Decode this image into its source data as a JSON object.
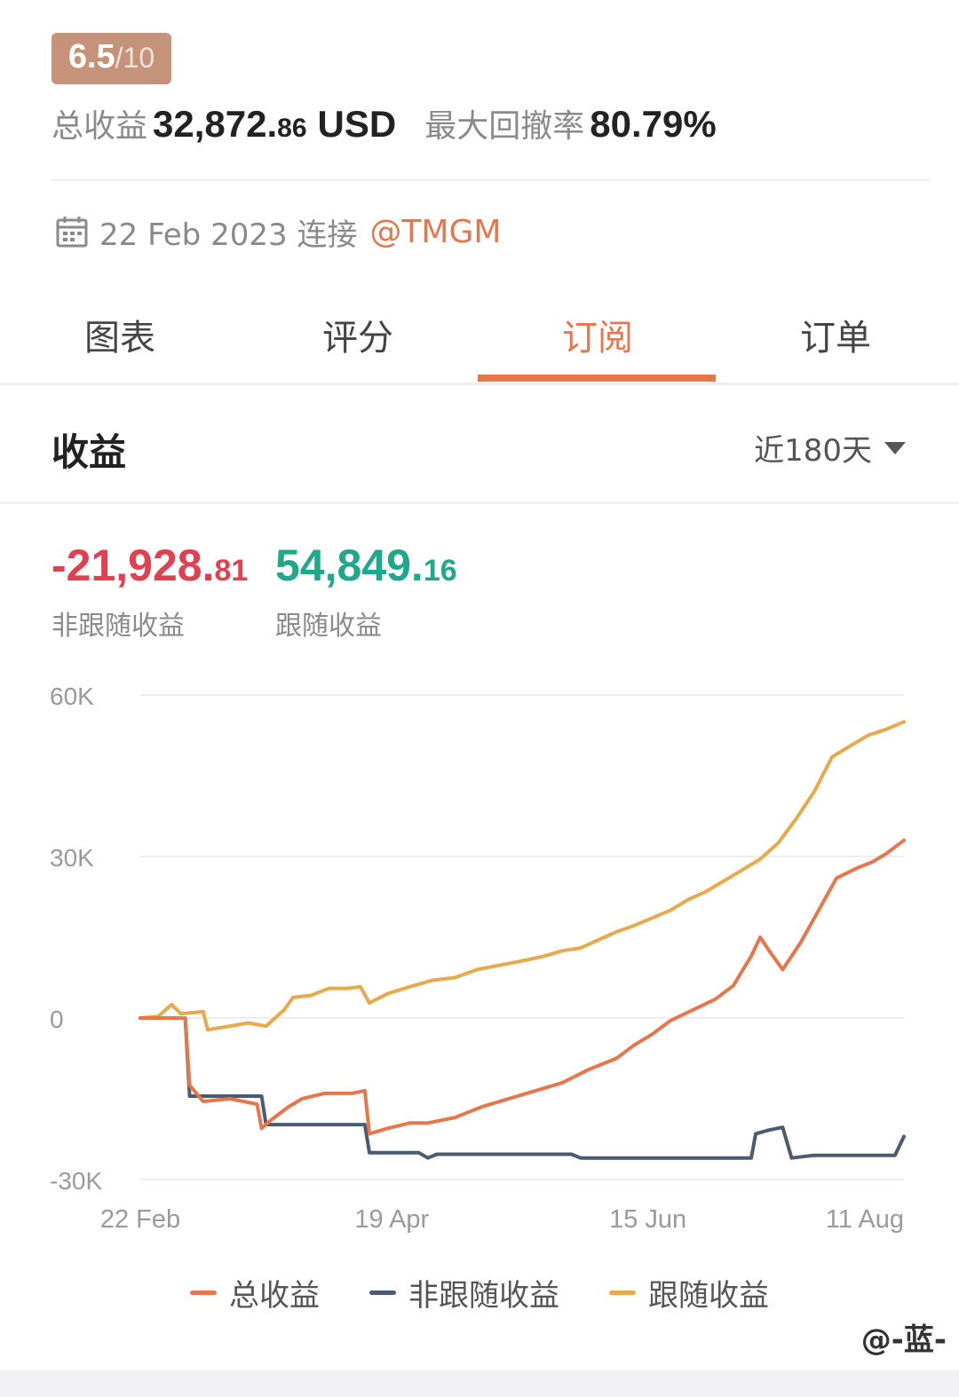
{
  "score": {
    "value": "6.5",
    "total": "/10"
  },
  "stats": {
    "total_profit_label": "总收益",
    "total_profit_int": "32,872.",
    "total_profit_dec": "86",
    "total_profit_unit": "USD",
    "max_drawdown_label": "最大回撤率",
    "max_drawdown_value": "80.79%"
  },
  "connection": {
    "date": "22 Feb 2023 连接",
    "broker": "@TMGM"
  },
  "tabs": [
    {
      "label": "图表",
      "active": false
    },
    {
      "label": "评分",
      "active": false
    },
    {
      "label": "订阅",
      "active": true
    },
    {
      "label": "订单",
      "active": false
    }
  ],
  "section": {
    "title": "收益",
    "range": "近180天"
  },
  "metrics": {
    "non_copy": {
      "int": "-21,928.",
      "dec": "81",
      "label": "非跟随收益",
      "color": "#e0404f"
    },
    "copy": {
      "int": "54,849.",
      "dec": "16",
      "label": "跟随收益",
      "color": "#1fa98a"
    }
  },
  "chart_data": {
    "type": "line",
    "y_ticks": [
      "60K",
      "30K",
      "0",
      "-30K"
    ],
    "y_tick_values": [
      60000,
      30000,
      0,
      -30000
    ],
    "ylim": [
      -30000,
      60000
    ],
    "x_ticks": [
      "22 Feb",
      "19 Apr",
      "15 Jun",
      "11 Aug"
    ],
    "x_tick_positions": [
      0,
      56,
      113,
      170
    ],
    "xlim": [
      0,
      170
    ],
    "grid": true,
    "series": [
      {
        "name": "总收益",
        "color": "#e8764d",
        "points": [
          [
            0,
            0
          ],
          [
            10,
            0
          ],
          [
            11,
            -12500
          ],
          [
            14,
            -15500
          ],
          [
            20,
            -15000
          ],
          [
            26,
            -16000
          ],
          [
            27,
            -20500
          ],
          [
            29,
            -19000
          ],
          [
            33,
            -16500
          ],
          [
            36,
            -15000
          ],
          [
            41,
            -14000
          ],
          [
            47,
            -14000
          ],
          [
            50,
            -13500
          ],
          [
            51,
            -21500
          ],
          [
            55,
            -20500
          ],
          [
            60,
            -19500
          ],
          [
            64,
            -19500
          ],
          [
            70,
            -18500
          ],
          [
            76,
            -16500
          ],
          [
            82,
            -15000
          ],
          [
            88,
            -13500
          ],
          [
            94,
            -12000
          ],
          [
            100,
            -9500
          ],
          [
            106,
            -7500
          ],
          [
            110,
            -5000
          ],
          [
            114,
            -3000
          ],
          [
            118,
            -500
          ],
          [
            123,
            1500
          ],
          [
            128,
            3500
          ],
          [
            132,
            6000
          ],
          [
            136,
            11500
          ],
          [
            138,
            15000
          ],
          [
            140,
            12500
          ],
          [
            143,
            9000
          ],
          [
            147,
            14000
          ],
          [
            151,
            20000
          ],
          [
            155,
            26000
          ],
          [
            160,
            28000
          ],
          [
            163,
            29000
          ],
          [
            166,
            30500
          ],
          [
            170,
            33000
          ]
        ]
      },
      {
        "name": "非跟随收益",
        "color": "#4a5a70",
        "points": [
          [
            0,
            0
          ],
          [
            10,
            0
          ],
          [
            11,
            -14500
          ],
          [
            27,
            -14500
          ],
          [
            28,
            -19800
          ],
          [
            50,
            -19800
          ],
          [
            51,
            -25000
          ],
          [
            62,
            -25000
          ],
          [
            64,
            -26000
          ],
          [
            66,
            -25300
          ],
          [
            96,
            -25300
          ],
          [
            98,
            -26000
          ],
          [
            136,
            -26000
          ],
          [
            137,
            -21500
          ],
          [
            140,
            -20800
          ],
          [
            143,
            -20300
          ],
          [
            145,
            -26000
          ],
          [
            150,
            -25500
          ],
          [
            168,
            -25500
          ],
          [
            170,
            -22000
          ]
        ]
      },
      {
        "name": "跟随收益",
        "color": "#e8a94a",
        "points": [
          [
            0,
            0
          ],
          [
            4,
            300
          ],
          [
            7,
            2500
          ],
          [
            9,
            800
          ],
          [
            12,
            1000
          ],
          [
            14,
            1200
          ],
          [
            15,
            -2200
          ],
          [
            20,
            -1500
          ],
          [
            24,
            -900
          ],
          [
            28,
            -1500
          ],
          [
            32,
            1500
          ],
          [
            34,
            3800
          ],
          [
            38,
            4200
          ],
          [
            42,
            5500
          ],
          [
            46,
            5500
          ],
          [
            49,
            5800
          ],
          [
            51,
            2800
          ],
          [
            55,
            4500
          ],
          [
            60,
            5800
          ],
          [
            65,
            7000
          ],
          [
            70,
            7500
          ],
          [
            75,
            9000
          ],
          [
            80,
            9800
          ],
          [
            85,
            10600
          ],
          [
            90,
            11500
          ],
          [
            94,
            12500
          ],
          [
            98,
            13000
          ],
          [
            102,
            14500
          ],
          [
            106,
            16000
          ],
          [
            110,
            17200
          ],
          [
            114,
            18600
          ],
          [
            118,
            20000
          ],
          [
            122,
            22000
          ],
          [
            126,
            23500
          ],
          [
            130,
            25500
          ],
          [
            134,
            27500
          ],
          [
            138,
            29500
          ],
          [
            142,
            32500
          ],
          [
            146,
            37000
          ],
          [
            150,
            42000
          ],
          [
            154,
            48500
          ],
          [
            158,
            50500
          ],
          [
            162,
            52500
          ],
          [
            166,
            53600
          ],
          [
            170,
            55000
          ]
        ]
      }
    ]
  },
  "watermark": "@-蓝-"
}
